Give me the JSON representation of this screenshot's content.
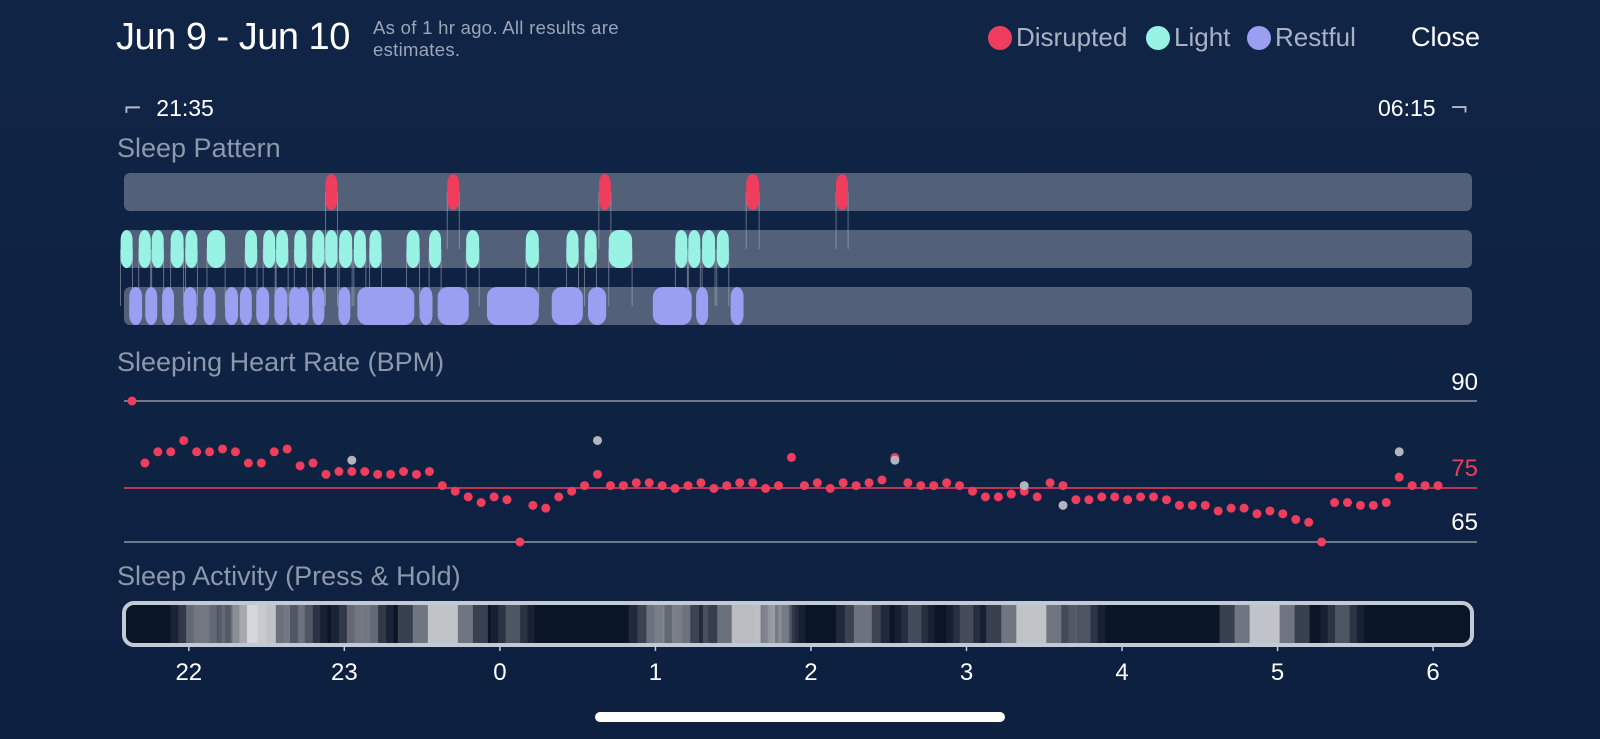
{
  "header": {
    "date_range": "Jun 9 - Jun 10",
    "as_of_note": "As of 1 hr ago. All results are estimates.",
    "close_label": "Close"
  },
  "legend": [
    {
      "label": "Disrupted",
      "color": "#ef3e5d"
    },
    {
      "label": "Light",
      "color": "#99f3e4"
    },
    {
      "label": "Restful",
      "color": "#9b9ff2"
    }
  ],
  "time_range": {
    "start": "21:35",
    "end": "06:15"
  },
  "sleep_pattern": {
    "title": "Sleep Pattern",
    "track_color": "#536079",
    "rows": [
      {
        "stage": "Disrupted",
        "color": "#ef3e5d",
        "segments": [
          [
            "22:54",
            "22:56"
          ],
          [
            "23:41",
            "23:43"
          ],
          [
            "00:39",
            "00:42"
          ],
          [
            "01:35",
            "01:40"
          ],
          [
            "02:11",
            "02:13"
          ]
        ]
      },
      {
        "stage": "Light",
        "color": "#99f3e4",
        "segments": [
          [
            "21:35",
            "21:37"
          ],
          [
            "21:42",
            "21:44"
          ],
          [
            "21:47",
            "21:49"
          ],
          [
            "21:53",
            "21:58"
          ],
          [
            "22:00",
            "22:02"
          ],
          [
            "22:07",
            "22:14"
          ],
          [
            "22:23",
            "22:25"
          ],
          [
            "22:30",
            "22:32"
          ],
          [
            "22:35",
            "22:37"
          ],
          [
            "22:42",
            "22:44"
          ],
          [
            "22:49",
            "22:51"
          ],
          [
            "22:54",
            "22:56"
          ],
          [
            "22:58",
            "23:03"
          ],
          [
            "23:04",
            "23:08"
          ],
          [
            "23:11",
            "23:13"
          ],
          [
            "23:24",
            "23:29"
          ],
          [
            "23:34",
            "23:36"
          ],
          [
            "23:47",
            "23:52"
          ],
          [
            "00:10",
            "00:15"
          ],
          [
            "00:27",
            "00:29"
          ],
          [
            "00:34",
            "00:36"
          ],
          [
            "00:42",
            "00:51"
          ],
          [
            "01:09",
            "01:11"
          ],
          [
            "01:14",
            "01:16"
          ],
          [
            "01:18",
            "01:23"
          ],
          [
            "01:25",
            "01:27"
          ]
        ]
      },
      {
        "stage": "Restful",
        "color": "#9b9ff2",
        "segments": [
          [
            "21:37",
            "21:42"
          ],
          [
            "21:44",
            "21:47"
          ],
          [
            "21:51",
            "21:53"
          ],
          [
            "21:58",
            "22:03"
          ],
          [
            "22:07",
            "22:09"
          ],
          [
            "22:14",
            "22:19"
          ],
          [
            "22:21",
            "22:23"
          ],
          [
            "22:26",
            "22:31"
          ],
          [
            "22:33",
            "22:38"
          ],
          [
            "22:40",
            "22:42"
          ],
          [
            "22:43",
            "22:45"
          ],
          [
            "22:49",
            "22:51"
          ],
          [
            "22:59",
            "23:01"
          ],
          [
            "23:05",
            "23:27"
          ],
          [
            "23:29",
            "23:34"
          ],
          [
            "23:36",
            "23:48"
          ],
          [
            "23:55",
            "00:15"
          ],
          [
            "00:20",
            "00:32"
          ],
          [
            "00:34",
            "00:41"
          ],
          [
            "00:59",
            "01:14"
          ],
          [
            "01:17",
            "01:19"
          ],
          [
            "01:29",
            "01:34"
          ]
        ]
      }
    ]
  },
  "heart_rate": {
    "title": "Sleeping Heart Rate (BPM)",
    "axis_max_label": "90",
    "avg_label": "75",
    "axis_min_label": "65",
    "avg_color": "#ef3e5d"
  },
  "sleep_activity": {
    "title": "Sleep Activity (Press & Hold)",
    "hour_labels": [
      "22",
      "23",
      "0",
      "1",
      "2",
      "3",
      "4",
      "5",
      "6"
    ],
    "bright_spots": [
      {
        "time": "22:02",
        "intensity": 0.35
      },
      {
        "time": "22:08",
        "intensity": 0.35
      },
      {
        "time": "22:23",
        "intensity": 0.45
      },
      {
        "time": "22:28",
        "intensity": 0.95
      },
      {
        "time": "22:45",
        "intensity": 0.3
      },
      {
        "time": "23:04",
        "intensity": 0.35
      },
      {
        "time": "23:10",
        "intensity": 0.35
      },
      {
        "time": "23:38",
        "intensity": 1.0
      },
      {
        "time": "00:05",
        "intensity": 0.3
      },
      {
        "time": "01:00",
        "intensity": 0.45
      },
      {
        "time": "01:10",
        "intensity": 0.45
      },
      {
        "time": "01:35",
        "intensity": 0.95
      },
      {
        "time": "01:46",
        "intensity": 0.25
      },
      {
        "time": "01:50",
        "intensity": 0.25
      },
      {
        "time": "02:20",
        "intensity": 0.45
      },
      {
        "time": "02:40",
        "intensity": 0.25
      },
      {
        "time": "03:00",
        "intensity": 0.25
      },
      {
        "time": "03:25",
        "intensity": 1.0
      },
      {
        "time": "03:45",
        "intensity": 0.3
      },
      {
        "time": "04:55",
        "intensity": 1.0
      },
      {
        "time": "05:25",
        "intensity": 0.3
      }
    ]
  },
  "chart_data": {
    "type": "scatter",
    "title": "Sleeping Heart Rate (BPM)",
    "x_unit": "time",
    "y_label": "BPM",
    "ylim": [
      65,
      90
    ],
    "reference_line": 75,
    "x_start": "21:35",
    "x_end": "06:15",
    "series": [
      {
        "color": "#ef3e5d",
        "points": [
          [
            0,
            90
          ],
          [
            1,
            79
          ],
          [
            2,
            81
          ],
          [
            3,
            81
          ],
          [
            4,
            83
          ],
          [
            5,
            81
          ],
          [
            6,
            81
          ],
          [
            7,
            81.5
          ],
          [
            8,
            81
          ],
          [
            9,
            79
          ],
          [
            10,
            79
          ],
          [
            11,
            81
          ],
          [
            12,
            81.5
          ],
          [
            13,
            78.5
          ],
          [
            14,
            79
          ],
          [
            15,
            77
          ],
          [
            16,
            77.5
          ],
          [
            17,
            77.5
          ],
          [
            18,
            77.5
          ],
          [
            19,
            77
          ],
          [
            20,
            77
          ],
          [
            21,
            77.5
          ],
          [
            22,
            77
          ],
          [
            23,
            77.5
          ],
          [
            24,
            75
          ],
          [
            25,
            74
          ],
          [
            26,
            73
          ],
          [
            27,
            72
          ],
          [
            28,
            73
          ],
          [
            29,
            72.5
          ],
          [
            30,
            65
          ],
          [
            31,
            71.5
          ],
          [
            32,
            71
          ],
          [
            33,
            73
          ],
          [
            34,
            74
          ],
          [
            35,
            75
          ],
          [
            36,
            77
          ],
          [
            37,
            75
          ],
          [
            38,
            75
          ],
          [
            39,
            75.5
          ],
          [
            40,
            75.5
          ],
          [
            41,
            75
          ],
          [
            42,
            74.5
          ],
          [
            43,
            75
          ],
          [
            44,
            75.5
          ],
          [
            45,
            74.5
          ],
          [
            46,
            75
          ],
          [
            47,
            75.5
          ],
          [
            48,
            75.5
          ],
          [
            49,
            74.5
          ],
          [
            50,
            75
          ],
          [
            51,
            80
          ],
          [
            52,
            75
          ],
          [
            53,
            75.5
          ],
          [
            54,
            74.5
          ],
          [
            55,
            75.5
          ],
          [
            56,
            75
          ],
          [
            57,
            75.5
          ],
          [
            58,
            76
          ],
          [
            59,
            80
          ],
          [
            60,
            75.5
          ],
          [
            61,
            75
          ],
          [
            62,
            75
          ],
          [
            63,
            75.5
          ],
          [
            64,
            75
          ],
          [
            65,
            74
          ],
          [
            66,
            73
          ],
          [
            67,
            73
          ],
          [
            68,
            73.5
          ],
          [
            69,
            74
          ],
          [
            70,
            73
          ],
          [
            71,
            75.5
          ],
          [
            72,
            75
          ],
          [
            73,
            72.5
          ],
          [
            74,
            72.5
          ],
          [
            75,
            73
          ],
          [
            76,
            73
          ],
          [
            77,
            72.5
          ],
          [
            78,
            73
          ],
          [
            79,
            73
          ],
          [
            80,
            72.5
          ],
          [
            81,
            71.5
          ],
          [
            82,
            71.5
          ],
          [
            83,
            71.5
          ],
          [
            84,
            70.5
          ],
          [
            85,
            71
          ],
          [
            86,
            71
          ],
          [
            87,
            70
          ],
          [
            88,
            70.5
          ],
          [
            89,
            70
          ],
          [
            90,
            69
          ],
          [
            91,
            68.5
          ],
          [
            92,
            65
          ],
          [
            93,
            72
          ],
          [
            94,
            72
          ],
          [
            95,
            71.5
          ],
          [
            96,
            71.5
          ],
          [
            97,
            72
          ],
          [
            98,
            76.5
          ],
          [
            99,
            75
          ],
          [
            100,
            75
          ],
          [
            101,
            75
          ]
        ]
      },
      {
        "color": "#b2b6bc",
        "points": [
          [
            17,
            79.5
          ],
          [
            36,
            83
          ],
          [
            59,
            79.5
          ],
          [
            69,
            75
          ],
          [
            72,
            71.5
          ],
          [
            98,
            81
          ]
        ]
      }
    ]
  }
}
